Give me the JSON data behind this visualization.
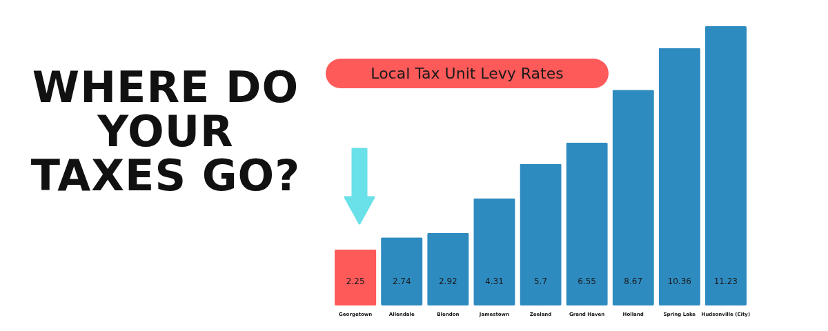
{
  "chart_data": {
    "type": "bar",
    "title": "WHERE DO YOUR TAXES GO?",
    "subtitle": "Local Tax Unit Levy Rates",
    "categories": [
      "Georgetown",
      "Allendale",
      "Blendon",
      "Jamestown",
      "Zeeland",
      "Grand Haven",
      "Holland",
      "Spring Lake",
      "Hudsonville (City)"
    ],
    "values": [
      2.25,
      2.74,
      2.92,
      4.31,
      5.7,
      6.55,
      8.67,
      10.36,
      11.23
    ],
    "colors": [
      "#ff5a5a",
      "#2e8bc0",
      "#2e8bc0",
      "#2e8bc0",
      "#2e8bc0",
      "#2e8bc0",
      "#2e8bc0",
      "#2e8bc0",
      "#2e8bc0"
    ],
    "data_labels": true
  }
}
